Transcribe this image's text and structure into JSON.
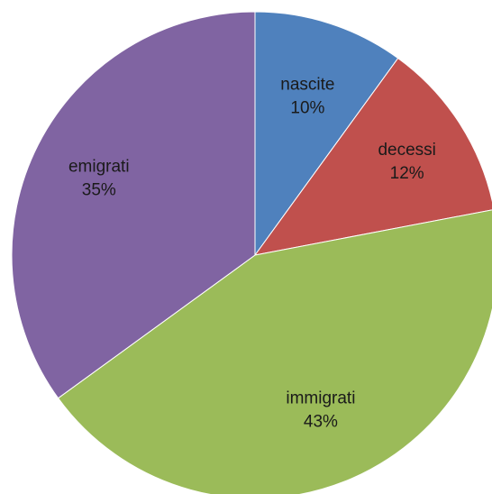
{
  "chart_data": {
    "type": "pie",
    "title": "",
    "slices": [
      {
        "label": "nascite",
        "value": 10,
        "percent_label": "10%",
        "color": "#4f81bd"
      },
      {
        "label": "decessi",
        "value": 12,
        "percent_label": "12%",
        "color": "#c0504d"
      },
      {
        "label": "immigrati",
        "value": 43,
        "percent_label": "43%",
        "color": "#9bbb59"
      },
      {
        "label": "emigrati",
        "value": 35,
        "percent_label": "35%",
        "color": "#8064a2"
      }
    ],
    "start": "12 o'clock",
    "direction": "clockwise",
    "legend": "none",
    "data_labels": "category and percent inside slices"
  }
}
